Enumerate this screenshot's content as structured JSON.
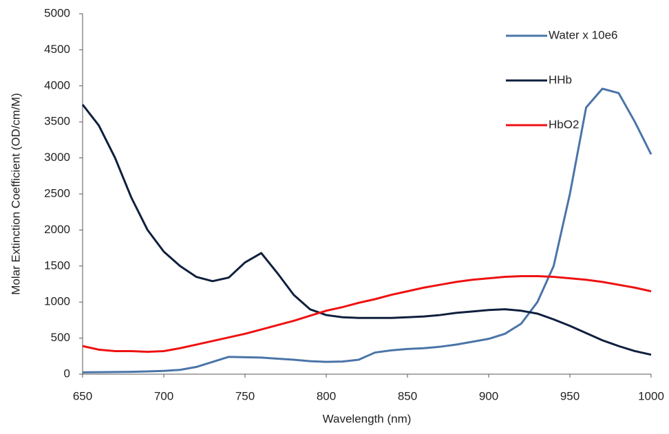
{
  "chart_data": {
    "type": "line",
    "x_label": "Wavelength (nm)",
    "y_label": "Molar Extinction Coefficient (OD/cm/M)",
    "x": [
      650,
      660,
      670,
      680,
      690,
      700,
      710,
      720,
      730,
      740,
      750,
      760,
      770,
      780,
      790,
      800,
      810,
      820,
      830,
      840,
      850,
      860,
      870,
      880,
      890,
      900,
      910,
      920,
      930,
      940,
      950,
      960,
      970,
      980,
      990,
      1000
    ],
    "series": [
      {
        "name": "Water x 10e6",
        "color": "#4a74a8",
        "values": [
          25,
          28,
          30,
          32,
          38,
          45,
          60,
          100,
          170,
          240,
          235,
          230,
          215,
          200,
          180,
          170,
          175,
          200,
          300,
          330,
          350,
          360,
          380,
          410,
          450,
          490,
          560,
          700,
          1000,
          1500,
          2500,
          3700,
          3960,
          3900,
          3500,
          3050
        ]
      },
      {
        "name": "HHb",
        "color": "#0f1f3d",
        "values": [
          3740,
          3450,
          3000,
          2450,
          2000,
          1700,
          1500,
          1350,
          1290,
          1340,
          1550,
          1680,
          1400,
          1100,
          900,
          820,
          790,
          780,
          780,
          780,
          790,
          800,
          820,
          850,
          870,
          890,
          900,
          880,
          840,
          760,
          670,
          570,
          470,
          390,
          320,
          270
        ]
      },
      {
        "name": "HbO2",
        "color": "#ee1111",
        "values": [
          390,
          340,
          320,
          320,
          310,
          320,
          360,
          410,
          460,
          510,
          560,
          620,
          680,
          740,
          810,
          880,
          930,
          990,
          1040,
          1100,
          1150,
          1200,
          1240,
          1280,
          1310,
          1330,
          1350,
          1360,
          1360,
          1350,
          1330,
          1310,
          1280,
          1240,
          1200,
          1150
        ]
      }
    ],
    "xlim": [
      650,
      1000
    ],
    "xticks": [
      650,
      700,
      750,
      800,
      850,
      900,
      950,
      1000
    ],
    "ylim": [
      0,
      5000
    ],
    "yticks": [
      0,
      500,
      1000,
      1500,
      2000,
      2500,
      3000,
      3500,
      4000,
      4500,
      5000
    ],
    "grid": false,
    "legend": "upper right"
  }
}
